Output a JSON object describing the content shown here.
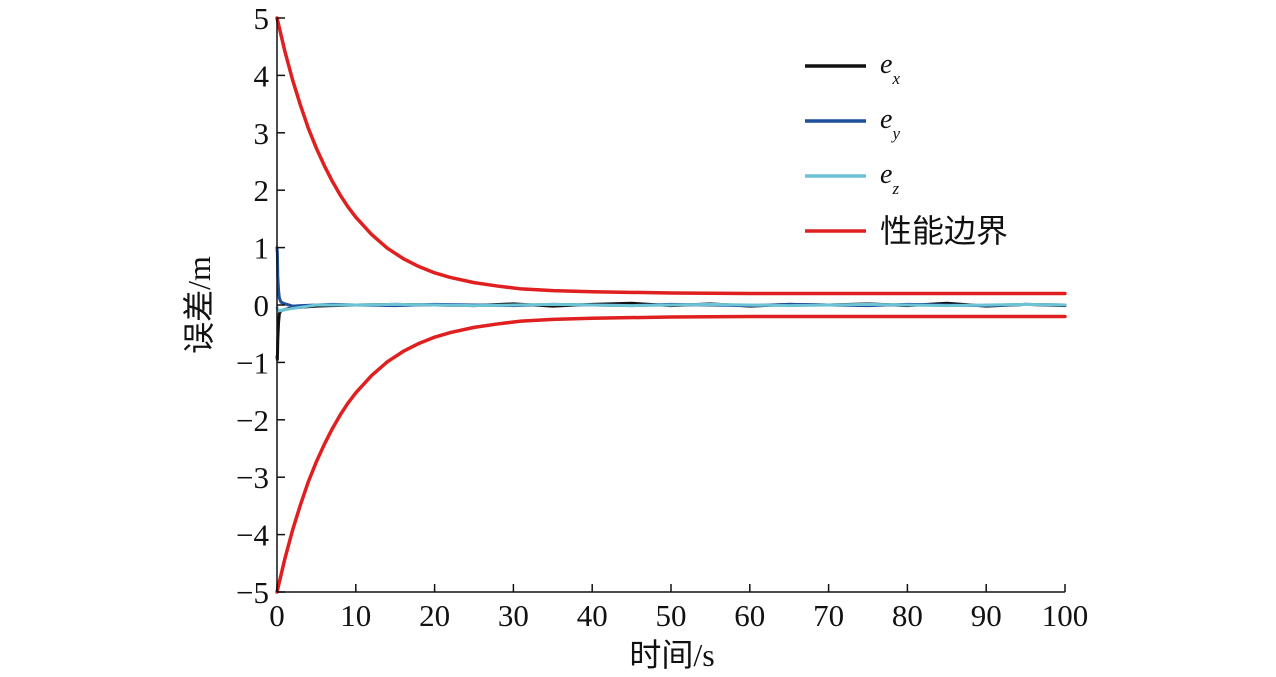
{
  "chart_data": {
    "type": "line",
    "xlabel": "时间/s",
    "ylabel": "误差/m",
    "xlim": [
      0,
      100
    ],
    "ylim": [
      -5,
      5
    ],
    "xticks": [
      0,
      10,
      20,
      30,
      40,
      50,
      60,
      70,
      80,
      90,
      100
    ],
    "yticks": [
      5,
      4,
      3,
      2,
      1,
      0,
      -1,
      -2,
      -3,
      -4,
      -5
    ],
    "xtick_labels": [
      "0",
      "10",
      "20",
      "30",
      "40",
      "50",
      "60",
      "70",
      "80",
      "90",
      "100"
    ],
    "ytick_labels": [
      "5",
      "4",
      "3",
      "2",
      "1",
      "0",
      "−1",
      "−2",
      "−3",
      "−4",
      "−5"
    ],
    "grid": false,
    "legend_position": "top-right",
    "legend": [
      {
        "base": "e",
        "sub": "x",
        "color": "#111111"
      },
      {
        "base": "e",
        "sub": "y",
        "color": "#1f4e9a"
      },
      {
        "base": "e",
        "sub": "z",
        "color": "#6cc3d5"
      },
      {
        "text": "性能边界",
        "color": "#e02020"
      }
    ],
    "series": [
      {
        "name": "e_x",
        "color": "#111111",
        "x": [
          0,
          0.05,
          0.1,
          0.2,
          0.3,
          0.5,
          1,
          1.5,
          2,
          3,
          5,
          7,
          10,
          15,
          20,
          25,
          30,
          35,
          40,
          45,
          50,
          55,
          60,
          65,
          70,
          75,
          80,
          85,
          90,
          95,
          100
        ],
        "y": [
          -0.9,
          -0.95,
          -0.6,
          -0.3,
          -0.15,
          -0.1,
          -0.08,
          -0.06,
          -0.05,
          -0.04,
          -0.02,
          -0.01,
          0,
          0.01,
          0,
          -0.01,
          0.02,
          -0.02,
          0.01,
          0.03,
          -0.01,
          0.02,
          -0.02,
          0.01,
          0,
          0.02,
          -0.01,
          0.03,
          -0.02,
          0.01,
          -0.01
        ]
      },
      {
        "name": "e_y",
        "color": "#1f4e9a",
        "x": [
          0,
          0.05,
          0.1,
          0.2,
          0.3,
          0.5,
          1,
          1.5,
          2,
          3,
          5,
          7,
          10,
          15,
          20,
          25,
          30,
          35,
          40,
          45,
          50,
          55,
          60,
          65,
          70,
          75,
          80,
          85,
          90,
          95,
          100
        ],
        "y": [
          1.0,
          0.9,
          0.5,
          0.25,
          0.12,
          0.05,
          0.02,
          0,
          -0.02,
          -0.01,
          0,
          0.01,
          0,
          -0.01,
          0.01,
          0,
          -0.01,
          0.01,
          0,
          -0.01,
          0.01,
          0,
          -0.01,
          0.01,
          0,
          -0.01,
          0.01,
          0,
          -0.01,
          0.01,
          0
        ]
      },
      {
        "name": "e_z",
        "color": "#6cc3d5",
        "x": [
          0,
          0.1,
          0.3,
          0.5,
          1,
          2,
          3,
          4,
          5,
          7,
          10,
          15,
          20,
          25,
          30,
          35,
          40,
          45,
          50,
          55,
          60,
          65,
          70,
          75,
          80,
          85,
          90,
          95,
          100
        ],
        "y": [
          -0.05,
          -0.08,
          -0.1,
          -0.1,
          -0.08,
          -0.06,
          -0.04,
          -0.02,
          0,
          0,
          0,
          0.01,
          0,
          -0.01,
          0,
          0.01,
          0,
          -0.01,
          0,
          0.01,
          0,
          -0.01,
          0,
          0.01,
          0,
          -0.01,
          0,
          0.01,
          0
        ]
      },
      {
        "name": "性能边界",
        "color": "#e02020",
        "x": [
          0,
          1,
          2,
          3,
          4,
          5,
          6,
          7,
          8,
          9,
          10,
          12,
          14,
          16,
          18,
          20,
          22,
          25,
          28,
          31,
          35,
          40,
          50,
          60,
          70,
          80,
          90,
          100
        ],
        "y": [
          5.0,
          4.42,
          3.91,
          3.47,
          3.07,
          2.73,
          2.43,
          2.16,
          1.92,
          1.71,
          1.53,
          1.23,
          0.99,
          0.81,
          0.67,
          0.56,
          0.48,
          0.39,
          0.33,
          0.28,
          0.25,
          0.23,
          0.21,
          0.2,
          0.2,
          0.2,
          0.2,
          0.2
        ]
      },
      {
        "name": "性能边界-lower",
        "color": "#e02020",
        "x": [
          0,
          1,
          2,
          3,
          4,
          5,
          6,
          7,
          8,
          9,
          10,
          12,
          14,
          16,
          18,
          20,
          22,
          25,
          28,
          31,
          35,
          40,
          50,
          60,
          70,
          80,
          90,
          100
        ],
        "y": [
          -5.0,
          -4.42,
          -3.91,
          -3.47,
          -3.07,
          -2.73,
          -2.43,
          -2.16,
          -1.92,
          -1.71,
          -1.53,
          -1.23,
          -0.99,
          -0.81,
          -0.67,
          -0.56,
          -0.48,
          -0.39,
          -0.33,
          -0.28,
          -0.25,
          -0.23,
          -0.21,
          -0.2,
          -0.2,
          -0.2,
          -0.2,
          -0.2
        ]
      }
    ]
  }
}
